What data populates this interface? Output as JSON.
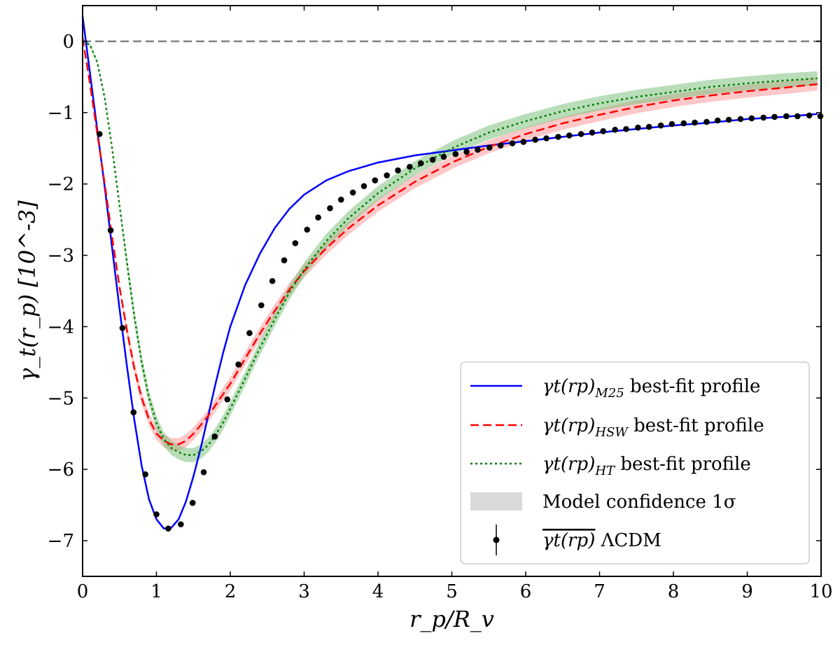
{
  "chart_data": {
    "type": "line",
    "xlabel": "r_p/R_v",
    "ylabel": "γ_t(r_p) [10^-3]",
    "xlim": [
      0,
      10
    ],
    "ylim": [
      -7.5,
      0.5
    ],
    "xticks": [
      "0",
      "1",
      "2",
      "3",
      "4",
      "5",
      "6",
      "7",
      "8",
      "9",
      "10"
    ],
    "yticks": [
      "0",
      "−1",
      "−2",
      "−3",
      "−4",
      "−5",
      "−6",
      "−7"
    ],
    "reference_line": {
      "y": 0,
      "style": "dashed",
      "color": "#808080"
    },
    "legend_position": "lower-right",
    "series": [
      {
        "name": "γt(rp)M25 best-fit profile",
        "legend_main": "γt(rp)",
        "legend_sub": "M25",
        "legend_suffix": " best-fit profile",
        "style": "solid",
        "color": "#0000ff",
        "x": [
          0,
          0.1,
          0.2,
          0.3,
          0.4,
          0.5,
          0.6,
          0.7,
          0.8,
          0.9,
          1.0,
          1.1,
          1.2,
          1.3,
          1.4,
          1.5,
          1.6,
          1.7,
          1.8,
          1.9,
          2.0,
          2.2,
          2.4,
          2.6,
          2.8,
          3.0,
          3.3,
          3.6,
          4.0,
          4.5,
          5.0,
          5.5,
          6.0,
          6.5,
          7.0,
          7.5,
          8.0,
          8.5,
          9.0,
          9.5,
          9.95
        ],
        "y": [
          0.35,
          -0.45,
          -1.25,
          -2.05,
          -2.9,
          -3.75,
          -4.55,
          -5.3,
          -5.95,
          -6.42,
          -6.7,
          -6.83,
          -6.82,
          -6.7,
          -6.45,
          -6.1,
          -5.7,
          -5.25,
          -4.8,
          -4.38,
          -4.0,
          -3.42,
          -2.98,
          -2.62,
          -2.35,
          -2.15,
          -1.95,
          -1.82,
          -1.7,
          -1.6,
          -1.53,
          -1.46,
          -1.4,
          -1.34,
          -1.28,
          -1.23,
          -1.18,
          -1.14,
          -1.09,
          -1.06,
          -1.02
        ]
      },
      {
        "name": "γt(rp)HSW best-fit profile",
        "legend_main": "γt(rp)",
        "legend_sub": "HSW",
        "legend_suffix": " best-fit profile",
        "style": "dashed",
        "color": "#ff0000",
        "band_color": "#ff9a9a",
        "x": [
          0,
          0.1,
          0.2,
          0.3,
          0.4,
          0.5,
          0.6,
          0.7,
          0.8,
          0.9,
          1.0,
          1.1,
          1.2,
          1.3,
          1.4,
          1.5,
          1.6,
          1.7,
          1.8,
          1.9,
          2.0,
          2.2,
          2.4,
          2.6,
          2.8,
          3.0,
          3.3,
          3.6,
          4.0,
          4.5,
          5.0,
          5.5,
          6.0,
          6.5,
          7.0,
          7.5,
          8.0,
          8.5,
          9.0,
          9.5,
          9.95
        ],
        "y": [
          0.05,
          -0.6,
          -1.3,
          -2.0,
          -2.75,
          -3.45,
          -4.05,
          -4.58,
          -5.0,
          -5.3,
          -5.5,
          -5.6,
          -5.65,
          -5.65,
          -5.6,
          -5.5,
          -5.38,
          -5.25,
          -5.1,
          -4.95,
          -4.8,
          -4.45,
          -4.1,
          -3.78,
          -3.48,
          -3.22,
          -2.9,
          -2.62,
          -2.3,
          -1.97,
          -1.7,
          -1.48,
          -1.3,
          -1.15,
          -1.03,
          -0.92,
          -0.83,
          -0.76,
          -0.7,
          -0.65,
          -0.6
        ]
      },
      {
        "name": "γt(rp)HT best-fit profile",
        "legend_main": "γt(rp)",
        "legend_sub": "HT",
        "legend_suffix": " best-fit profile",
        "style": "dotted",
        "color": "#007f00",
        "band_color": "#7fc17f",
        "x": [
          0,
          0.1,
          0.2,
          0.3,
          0.4,
          0.5,
          0.6,
          0.7,
          0.8,
          0.9,
          1.0,
          1.1,
          1.2,
          1.3,
          1.4,
          1.5,
          1.6,
          1.7,
          1.8,
          1.9,
          2.0,
          2.2,
          2.4,
          2.6,
          2.8,
          3.0,
          3.3,
          3.6,
          4.0,
          4.5,
          5.0,
          5.5,
          6.0,
          6.5,
          7.0,
          7.5,
          8.0,
          8.5,
          9.0,
          9.5,
          9.95
        ],
        "y": [
          0,
          -0.05,
          -0.3,
          -0.8,
          -1.5,
          -2.3,
          -3.1,
          -3.85,
          -4.5,
          -5.0,
          -5.35,
          -5.58,
          -5.7,
          -5.76,
          -5.8,
          -5.8,
          -5.75,
          -5.66,
          -5.52,
          -5.35,
          -5.15,
          -4.73,
          -4.3,
          -3.9,
          -3.52,
          -3.2,
          -2.8,
          -2.48,
          -2.13,
          -1.78,
          -1.5,
          -1.28,
          -1.12,
          -0.98,
          -0.87,
          -0.78,
          -0.71,
          -0.64,
          -0.59,
          -0.55,
          -0.52
        ]
      }
    ],
    "points": {
      "name": "γt(rp) ΛCDM",
      "legend_main": "γt(rp)",
      "legend_suffix": " ΛCDM",
      "color": "#000000",
      "x": [
        0.23,
        0.38,
        0.54,
        0.69,
        0.85,
        1.0,
        1.16,
        1.33,
        1.49,
        1.64,
        1.79,
        1.96,
        2.11,
        2.26,
        2.42,
        2.57,
        2.73,
        2.88,
        3.04,
        3.19,
        3.35,
        3.5,
        3.66,
        3.81,
        3.96,
        4.12,
        4.27,
        4.43,
        4.58,
        4.74,
        4.89,
        5.05,
        5.2,
        5.35,
        5.51,
        5.66,
        5.82,
        5.97,
        6.13,
        6.28,
        6.44,
        6.59,
        6.75,
        6.9,
        7.05,
        7.21,
        7.36,
        7.52,
        7.67,
        7.83,
        7.98,
        8.14,
        8.29,
        8.45,
        8.6,
        8.75,
        8.91,
        9.06,
        9.22,
        9.37,
        9.53,
        9.68,
        9.84,
        9.99
      ],
      "y": [
        -1.3,
        -2.65,
        -4.02,
        -5.2,
        -6.07,
        -6.63,
        -6.83,
        -6.77,
        -6.47,
        -6.04,
        -5.54,
        -5.02,
        -4.53,
        -4.09,
        -3.7,
        -3.36,
        -3.07,
        -2.83,
        -2.64,
        -2.47,
        -2.34,
        -2.22,
        -2.12,
        -2.03,
        -1.95,
        -1.88,
        -1.81,
        -1.76,
        -1.71,
        -1.66,
        -1.62,
        -1.58,
        -1.55,
        -1.52,
        -1.49,
        -1.46,
        -1.43,
        -1.41,
        -1.38,
        -1.36,
        -1.34,
        -1.32,
        -1.3,
        -1.28,
        -1.26,
        -1.24,
        -1.23,
        -1.21,
        -1.2,
        -1.18,
        -1.16,
        -1.15,
        -1.14,
        -1.13,
        -1.11,
        -1.1,
        -1.09,
        -1.08,
        -1.07,
        -1.06,
        -1.05,
        -1.05,
        -1.04,
        -1.05
      ]
    },
    "confidence_legend": {
      "label": "Model confidence 1σ",
      "color": "#d9d9d9"
    }
  }
}
